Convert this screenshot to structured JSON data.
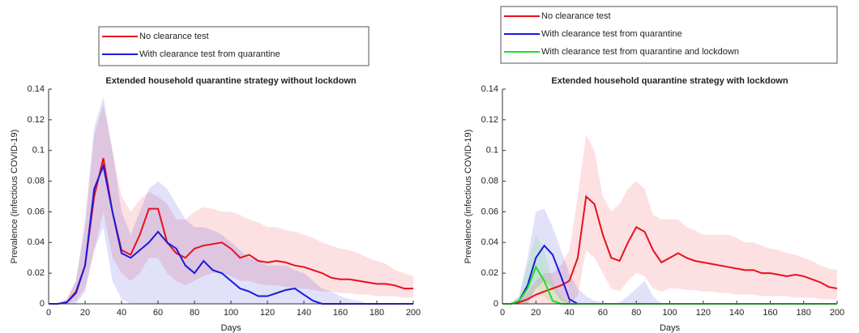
{
  "chart_data": [
    {
      "type": "line",
      "title": "Extended household quarantine strategy without lockdown",
      "x_label": "Days",
      "y_label": "Prevalence (infectious COVID-19)",
      "x": [
        0,
        5,
        10,
        15,
        20,
        25,
        30,
        35,
        40,
        45,
        50,
        55,
        60,
        65,
        70,
        75,
        80,
        85,
        90,
        95,
        100,
        105,
        110,
        115,
        120,
        125,
        130,
        135,
        140,
        145,
        150,
        155,
        160,
        165,
        170,
        175,
        180,
        185,
        190,
        195,
        200
      ],
      "xlim": [
        0,
        200
      ],
      "xticks": [
        0,
        20,
        40,
        60,
        80,
        100,
        120,
        140,
        160,
        180,
        200
      ],
      "ylim": [
        0,
        0.14
      ],
      "yticks": [
        0,
        0.02,
        0.04,
        0.06,
        0.08,
        0.1,
        0.12,
        0.14
      ],
      "series": [
        {
          "name": "No clearance test",
          "color": "#e8101e",
          "values": [
            0,
            0,
            0.001,
            0.008,
            0.025,
            0.07,
            0.095,
            0.06,
            0.035,
            0.032,
            0.045,
            0.062,
            0.062,
            0.04,
            0.033,
            0.03,
            0.036,
            0.038,
            0.039,
            0.04,
            0.036,
            0.03,
            0.032,
            0.028,
            0.027,
            0.028,
            0.027,
            0.025,
            0.024,
            0.022,
            0.02,
            0.017,
            0.016,
            0.016,
            0.015,
            0.014,
            0.013,
            0.013,
            0.012,
            0.01,
            0.01
          ],
          "upper": [
            0,
            0,
            0.003,
            0.015,
            0.05,
            0.11,
            0.13,
            0.1,
            0.07,
            0.06,
            0.068,
            0.073,
            0.07,
            0.065,
            0.055,
            0.055,
            0.06,
            0.063,
            0.062,
            0.06,
            0.06,
            0.058,
            0.055,
            0.053,
            0.05,
            0.05,
            0.048,
            0.047,
            0.045,
            0.043,
            0.04,
            0.038,
            0.036,
            0.035,
            0.033,
            0.03,
            0.028,
            0.026,
            0.022,
            0.02,
            0.018
          ],
          "lower": [
            0,
            0,
            0,
            0.002,
            0.01,
            0.035,
            0.06,
            0.03,
            0.02,
            0.015,
            0.02,
            0.03,
            0.03,
            0.02,
            0.015,
            0.012,
            0.015,
            0.018,
            0.02,
            0.02,
            0.018,
            0.015,
            0.015,
            0.013,
            0.012,
            0.012,
            0.011,
            0.01,
            0.01,
            0.009,
            0.008,
            0.008,
            0.007,
            0.007,
            0.006,
            0.006,
            0.005,
            0.005,
            0.005,
            0.004,
            0.004
          ]
        },
        {
          "name": "With clearance test from quarantine",
          "color": "#1a1adc",
          "values": [
            0,
            0,
            0.001,
            0.007,
            0.025,
            0.075,
            0.09,
            0.06,
            0.033,
            0.03,
            0.035,
            0.04,
            0.047,
            0.04,
            0.036,
            0.025,
            0.02,
            0.028,
            0.022,
            0.02,
            0.015,
            0.01,
            0.008,
            0.005,
            0.005,
            0.007,
            0.009,
            0.01,
            0.006,
            0.002,
            0,
            0,
            0,
            0,
            0,
            0,
            0,
            0,
            0,
            0,
            0
          ],
          "upper": [
            0,
            0,
            0.003,
            0.015,
            0.055,
            0.115,
            0.135,
            0.1,
            0.06,
            0.045,
            0.06,
            0.075,
            0.08,
            0.075,
            0.065,
            0.055,
            0.05,
            0.05,
            0.048,
            0.045,
            0.04,
            0.035,
            0.03,
            0.028,
            0.025,
            0.025,
            0.025,
            0.022,
            0.02,
            0.015,
            0.01,
            0.008,
            0.005,
            0.003,
            0.002,
            0,
            0,
            0,
            0,
            0,
            0
          ],
          "lower": [
            0,
            0,
            0,
            0,
            0.008,
            0.035,
            0.05,
            0.015,
            0.003,
            0,
            0,
            0,
            0,
            0,
            0,
            0,
            0,
            0,
            0,
            0,
            0,
            0,
            0,
            0,
            0,
            0,
            0,
            0,
            0,
            0,
            0,
            0,
            0,
            0,
            0,
            0,
            0,
            0,
            0,
            0,
            0
          ]
        }
      ]
    },
    {
      "type": "line",
      "title": "Extended household quarantine strategy with lockdown",
      "x_label": "Days",
      "y_label": "Prevalence (infectious COVID-19)",
      "x": [
        0,
        5,
        10,
        15,
        20,
        25,
        30,
        35,
        40,
        45,
        50,
        55,
        60,
        65,
        70,
        75,
        80,
        85,
        90,
        95,
        100,
        105,
        110,
        115,
        120,
        125,
        130,
        135,
        140,
        145,
        150,
        155,
        160,
        165,
        170,
        175,
        180,
        185,
        190,
        195,
        200
      ],
      "xlim": [
        0,
        200
      ],
      "xticks": [
        0,
        20,
        40,
        60,
        80,
        100,
        120,
        140,
        160,
        180,
        200
      ],
      "ylim": [
        0,
        0.14
      ],
      "yticks": [
        0,
        0.02,
        0.04,
        0.06,
        0.08,
        0.1,
        0.12,
        0.14
      ],
      "series": [
        {
          "name": "No clearance test",
          "color": "#e8101e",
          "values": [
            0,
            0,
            0.001,
            0.003,
            0.006,
            0.008,
            0.01,
            0.012,
            0.015,
            0.03,
            0.07,
            0.065,
            0.045,
            0.03,
            0.028,
            0.04,
            0.05,
            0.047,
            0.035,
            0.027,
            0.03,
            0.033,
            0.03,
            0.028,
            0.027,
            0.026,
            0.025,
            0.024,
            0.023,
            0.022,
            0.022,
            0.02,
            0.02,
            0.019,
            0.018,
            0.019,
            0.018,
            0.016,
            0.014,
            0.011,
            0.01
          ],
          "upper": [
            0,
            0,
            0.003,
            0.008,
            0.015,
            0.02,
            0.02,
            0.025,
            0.035,
            0.07,
            0.11,
            0.1,
            0.07,
            0.06,
            0.065,
            0.075,
            0.08,
            0.075,
            0.058,
            0.055,
            0.055,
            0.055,
            0.05,
            0.048,
            0.045,
            0.045,
            0.045,
            0.045,
            0.043,
            0.04,
            0.04,
            0.038,
            0.036,
            0.035,
            0.033,
            0.032,
            0.03,
            0.028,
            0.025,
            0.023,
            0.022
          ],
          "lower": [
            0,
            0,
            0,
            0,
            0,
            0,
            0,
            0,
            0,
            0.005,
            0.035,
            0.03,
            0.02,
            0.01,
            0.008,
            0.015,
            0.02,
            0.018,
            0.01,
            0.008,
            0.01,
            0.01,
            0.009,
            0.009,
            0.008,
            0.008,
            0.007,
            0.007,
            0.006,
            0.006,
            0.006,
            0.005,
            0.005,
            0.005,
            0.005,
            0.004,
            0.004,
            0.004,
            0.003,
            0.003,
            0.003
          ]
        },
        {
          "name": "With clearance test from quarantine",
          "color": "#1a1adc",
          "values": [
            0,
            0,
            0.002,
            0.012,
            0.03,
            0.038,
            0.032,
            0.018,
            0.003,
            0,
            0,
            0,
            0,
            0,
            0,
            0,
            0,
            0,
            0,
            0,
            0,
            0,
            0,
            0,
            0,
            0,
            0,
            0,
            0,
            0,
            0,
            0,
            0,
            0,
            0,
            0,
            0,
            0,
            0,
            0,
            0
          ],
          "upper": [
            0,
            0,
            0.005,
            0.03,
            0.06,
            0.062,
            0.05,
            0.035,
            0.02,
            0.01,
            0.005,
            0.002,
            0.001,
            0,
            0.001,
            0.005,
            0.01,
            0.015,
            0.005,
            0,
            0,
            0,
            0,
            0,
            0,
            0,
            0,
            0,
            0,
            0,
            0,
            0,
            0,
            0,
            0,
            0,
            0,
            0,
            0,
            0,
            0
          ],
          "lower": [
            0,
            0,
            0,
            0,
            0.01,
            0.015,
            0.01,
            0.002,
            0,
            0,
            0,
            0,
            0,
            0,
            0,
            0,
            0,
            0,
            0,
            0,
            0,
            0,
            0,
            0,
            0,
            0,
            0,
            0,
            0,
            0,
            0,
            0,
            0,
            0,
            0,
            0,
            0,
            0,
            0,
            0,
            0
          ]
        },
        {
          "name": "With clearance test from quarantine and lockdown",
          "color": "#22dd22",
          "values": [
            0,
            0,
            0.002,
            0.01,
            0.024,
            0.015,
            0.002,
            0,
            0,
            0,
            0,
            0,
            0,
            0,
            0,
            0,
            0,
            0,
            0,
            0,
            0,
            0,
            0,
            0,
            0,
            0,
            0,
            0,
            0,
            0,
            0,
            0,
            0,
            0,
            0,
            0,
            0,
            0,
            0,
            0,
            0
          ],
          "upper": [
            0,
            0,
            0.005,
            0.025,
            0.045,
            0.035,
            0.015,
            0.005,
            0,
            0,
            0,
            0,
            0,
            0,
            0,
            0,
            0,
            0,
            0,
            0,
            0,
            0,
            0,
            0,
            0,
            0,
            0,
            0,
            0,
            0,
            0,
            0,
            0,
            0,
            0,
            0,
            0,
            0,
            0,
            0,
            0
          ],
          "lower": [
            0,
            0,
            0,
            0,
            0.01,
            0.005,
            0,
            0,
            0,
            0,
            0,
            0,
            0,
            0,
            0,
            0,
            0,
            0,
            0,
            0,
            0,
            0,
            0,
            0,
            0,
            0,
            0,
            0,
            0,
            0,
            0,
            0,
            0,
            0,
            0,
            0,
            0,
            0,
            0,
            0,
            0
          ]
        }
      ]
    }
  ]
}
